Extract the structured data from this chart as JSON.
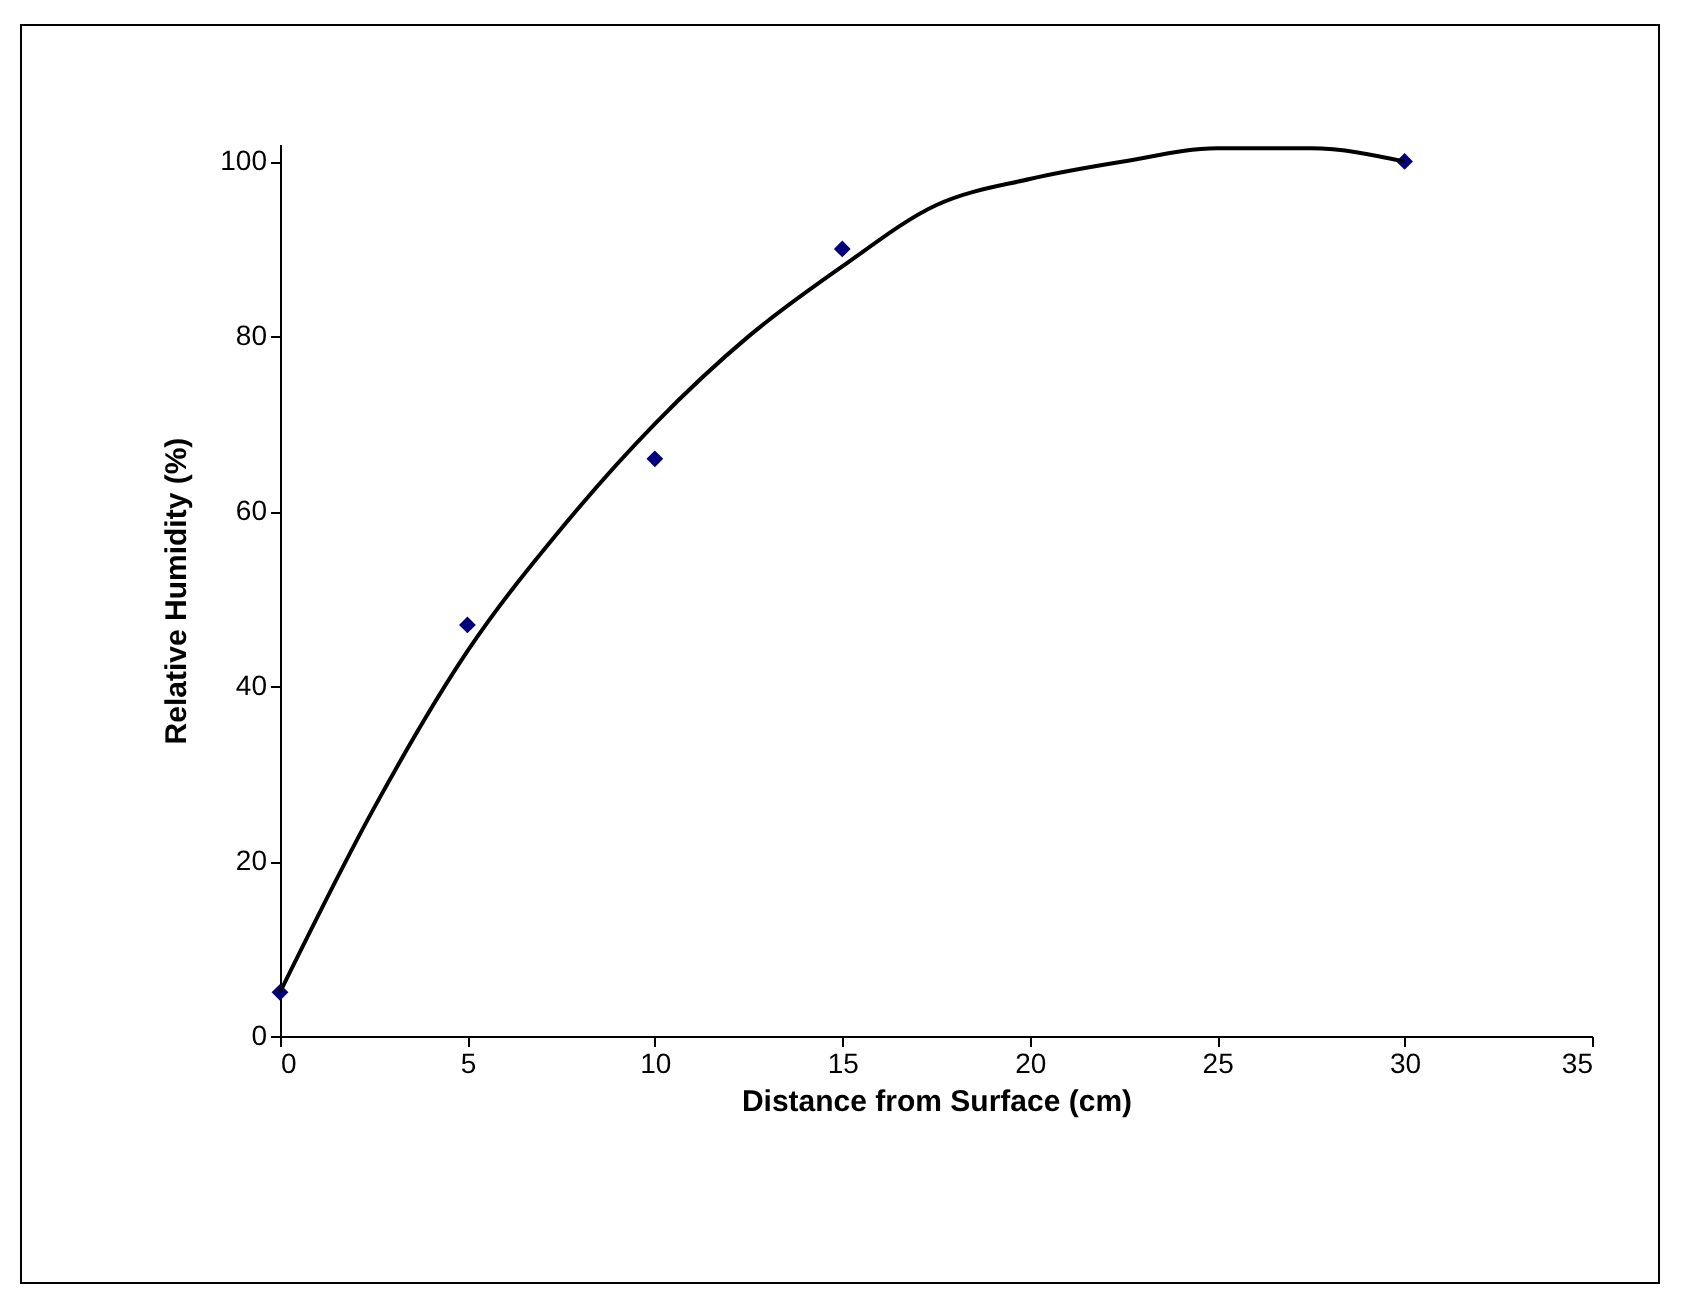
{
  "chart_data": {
    "type": "scatter",
    "xlabel": "Distance from Surface (cm)",
    "ylabel": "Relative Humidity (%)",
    "grid": false,
    "xlim": [
      0,
      35
    ],
    "xticks": [
      0,
      5,
      10,
      15,
      20,
      25,
      30,
      35
    ],
    "ylim": [
      0,
      102
    ],
    "yticks": [
      0,
      20,
      40,
      60,
      80,
      100
    ],
    "x": [
      0,
      5,
      10,
      15,
      30
    ],
    "series": [
      {
        "marker": "diamond",
        "color": "#00007f",
        "values": [
          5,
          47,
          66,
          90,
          100
        ]
      },
      {
        "type": "line",
        "marker": "none",
        "color": "#000000",
        "line_style": "solid",
        "x": [
          0,
          2.5,
          5,
          7.5,
          10,
          12.5,
          15,
          17.5,
          20,
          22.5,
          25,
          27.5,
          30
        ],
        "values": [
          5,
          26,
          44,
          58,
          70,
          80,
          88,
          95,
          98,
          100,
          101.5,
          101.5,
          100
        ]
      }
    ]
  }
}
